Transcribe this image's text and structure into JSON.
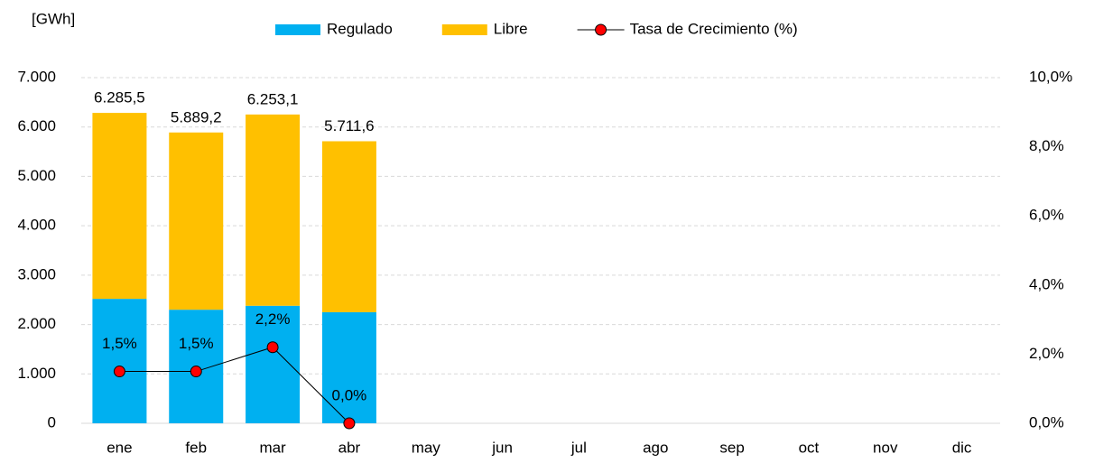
{
  "chart_data": {
    "type": "stacked-bar-line",
    "unit_label": "[GWh]",
    "categories": [
      "ene",
      "feb",
      "mar",
      "abr",
      "may",
      "jun",
      "jul",
      "ago",
      "sep",
      "oct",
      "nov",
      "dic"
    ],
    "series": [
      {
        "name": "Regulado",
        "color": "#00b0f0",
        "values": [
          2520,
          2300,
          2380,
          2250,
          null,
          null,
          null,
          null,
          null,
          null,
          null,
          null
        ]
      },
      {
        "name": "Libre",
        "color": "#ffc000",
        "values": [
          3765.5,
          3589.2,
          3873.1,
          3461.6,
          null,
          null,
          null,
          null,
          null,
          null,
          null,
          null
        ]
      },
      {
        "name": "Tasa de Crecimiento (%)",
        "color": "#ff0000",
        "axis": "y2",
        "values": [
          1.5,
          1.5,
          2.2,
          0.0,
          null,
          null,
          null,
          null,
          null,
          null,
          null,
          null
        ],
        "value_labels": [
          "1,5%",
          "1,5%",
          "2,2%",
          "0,0%",
          null,
          null,
          null,
          null,
          null,
          null,
          null,
          null
        ]
      }
    ],
    "totals": [
      6285.5,
      5889.2,
      6253.1,
      5711.6,
      null,
      null,
      null,
      null,
      null,
      null,
      null,
      null
    ],
    "total_labels": [
      "6.285,5",
      "5.889,2",
      "6.253,1",
      "5.711,6",
      null,
      null,
      null,
      null,
      null,
      null,
      null,
      null
    ],
    "ylim": [
      0,
      7000
    ],
    "yticks": [
      0,
      {
        "value": 1000,
        "label": "1.000"
      },
      {
        "value": 2000,
        "label": "2.000"
      },
      {
        "value": 3000,
        "label": "3.000"
      },
      {
        "value": 4000,
        "label": "4.000"
      },
      {
        "value": 5000,
        "label": "5.000"
      },
      {
        "value": 6000,
        "label": "6.000"
      },
      {
        "value": 7000,
        "label": "7.000"
      }
    ],
    "y2lim": [
      0,
      10
    ],
    "y2ticks": [
      {
        "value": 0,
        "label": "0,0%"
      },
      {
        "value": 2,
        "label": "2,0%"
      },
      {
        "value": 4,
        "label": "4,0%"
      },
      {
        "value": 6,
        "label": "6,0%"
      },
      {
        "value": 8,
        "label": "8,0%"
      },
      {
        "value": 10,
        "label": "10,0%"
      }
    ],
    "grid": true,
    "legend": "top"
  }
}
